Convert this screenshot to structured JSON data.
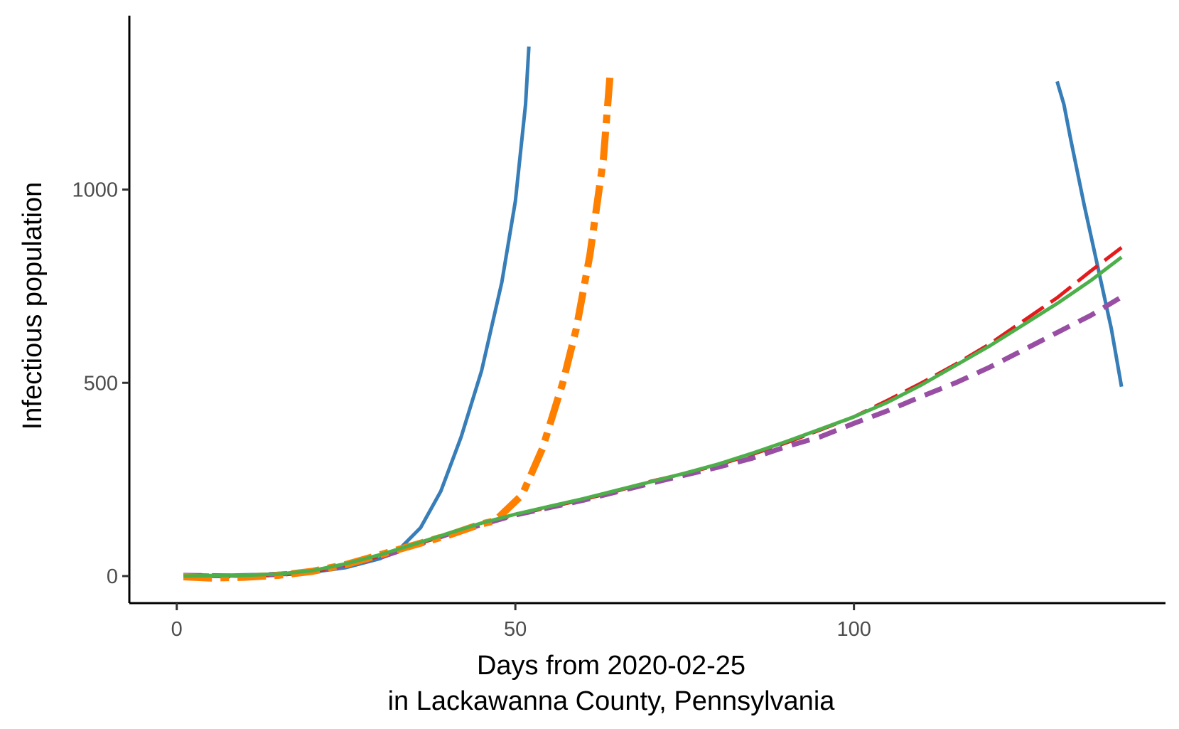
{
  "chart_data": {
    "type": "line",
    "title": "",
    "xlabel": "Days from 2020-02-25",
    "xlabel_line2": "in Lackawanna County, Pennsylvania",
    "ylabel": "Infectious population",
    "xlim": [
      -7,
      146
    ],
    "ylim": [
      -70,
      1450
    ],
    "x_ticks": [
      0,
      50,
      100
    ],
    "y_ticks": [
      0,
      500,
      1000
    ],
    "grid": false,
    "legend": "none",
    "series": [
      {
        "color": "#377eb8",
        "dash": "solid",
        "width": 5,
        "points": [
          [
            1,
            -2
          ],
          [
            5,
            1
          ],
          [
            10,
            3
          ],
          [
            15,
            5
          ],
          [
            20,
            10
          ],
          [
            25,
            22
          ],
          [
            30,
            45
          ],
          [
            33,
            72
          ],
          [
            36,
            125
          ],
          [
            39,
            220
          ],
          [
            42,
            360
          ],
          [
            45,
            530
          ],
          [
            48,
            760
          ],
          [
            50,
            970
          ],
          [
            51.5,
            1220
          ],
          [
            52,
            1370
          ]
        ]
      },
      {
        "color": "#377eb8",
        "dash": "solid",
        "width": 5,
        "points": [
          [
            130,
            1280
          ],
          [
            131,
            1220
          ],
          [
            132,
            1130
          ],
          [
            134,
            960
          ],
          [
            136,
            800
          ],
          [
            138,
            640
          ],
          [
            139.5,
            490
          ]
        ]
      },
      {
        "color": "#e41a1c",
        "dash": "36,12",
        "width": 5,
        "points": [
          [
            1,
            3
          ],
          [
            5,
            2
          ],
          [
            10,
            0
          ],
          [
            15,
            2
          ],
          [
            20,
            10
          ],
          [
            25,
            28
          ],
          [
            30,
            52
          ],
          [
            35,
            80
          ],
          [
            40,
            107
          ],
          [
            45,
            135
          ],
          [
            50,
            158
          ],
          [
            55,
            178
          ],
          [
            60,
            198
          ],
          [
            65,
            220
          ],
          [
            70,
            245
          ],
          [
            75,
            265
          ],
          [
            80,
            288
          ],
          [
            85,
            315
          ],
          [
            90,
            345
          ],
          [
            95,
            378
          ],
          [
            100,
            412
          ],
          [
            105,
            455
          ],
          [
            110,
            500
          ],
          [
            115,
            548
          ],
          [
            120,
            600
          ],
          [
            125,
            660
          ],
          [
            130,
            720
          ],
          [
            135,
            790
          ],
          [
            139.5,
            850
          ]
        ]
      },
      {
        "color": "#984ea3",
        "dash": "26,14",
        "width": 7,
        "points": [
          [
            1,
            2
          ],
          [
            10,
            0
          ],
          [
            20,
            10
          ],
          [
            30,
            48
          ],
          [
            40,
            108
          ],
          [
            50,
            158
          ],
          [
            60,
            196
          ],
          [
            70,
            240
          ],
          [
            80,
            282
          ],
          [
            85,
            305
          ],
          [
            90,
            335
          ],
          [
            95,
            360
          ],
          [
            100,
            395
          ],
          [
            105,
            428
          ],
          [
            110,
            465
          ],
          [
            115,
            500
          ],
          [
            120,
            540
          ],
          [
            125,
            585
          ],
          [
            130,
            630
          ],
          [
            135,
            675
          ],
          [
            139.5,
            722
          ]
        ]
      },
      {
        "color": "#ff7f00",
        "dash": "40,12,12,12",
        "width": 10,
        "points": [
          [
            1,
            -2
          ],
          [
            5,
            -5
          ],
          [
            10,
            -3
          ],
          [
            15,
            2
          ],
          [
            20,
            12
          ],
          [
            25,
            30
          ],
          [
            30,
            55
          ],
          [
            35,
            80
          ],
          [
            40,
            105
          ],
          [
            45,
            135
          ],
          [
            47,
            143
          ],
          [
            51,
            210
          ],
          [
            54,
            330
          ],
          [
            57,
            500
          ],
          [
            59,
            640
          ],
          [
            61,
            830
          ],
          [
            63,
            1080
          ],
          [
            64,
            1300
          ]
        ]
      },
      {
        "color": "#4daf4a",
        "dash": "solid",
        "width": 5,
        "points": [
          [
            1,
            0
          ],
          [
            5,
            1
          ],
          [
            10,
            2
          ],
          [
            15,
            5
          ],
          [
            20,
            14
          ],
          [
            25,
            32
          ],
          [
            30,
            55
          ],
          [
            35,
            82
          ],
          [
            40,
            110
          ],
          [
            45,
            137
          ],
          [
            50,
            160
          ],
          [
            55,
            180
          ],
          [
            60,
            200
          ],
          [
            65,
            222
          ],
          [
            70,
            244
          ],
          [
            75,
            266
          ],
          [
            80,
            290
          ],
          [
            85,
            318
          ],
          [
            90,
            348
          ],
          [
            95,
            380
          ],
          [
            100,
            412
          ],
          [
            105,
            450
          ],
          [
            110,
            495
          ],
          [
            115,
            545
          ],
          [
            120,
            595
          ],
          [
            125,
            650
          ],
          [
            130,
            705
          ],
          [
            135,
            765
          ],
          [
            139.5,
            825
          ]
        ]
      }
    ]
  }
}
